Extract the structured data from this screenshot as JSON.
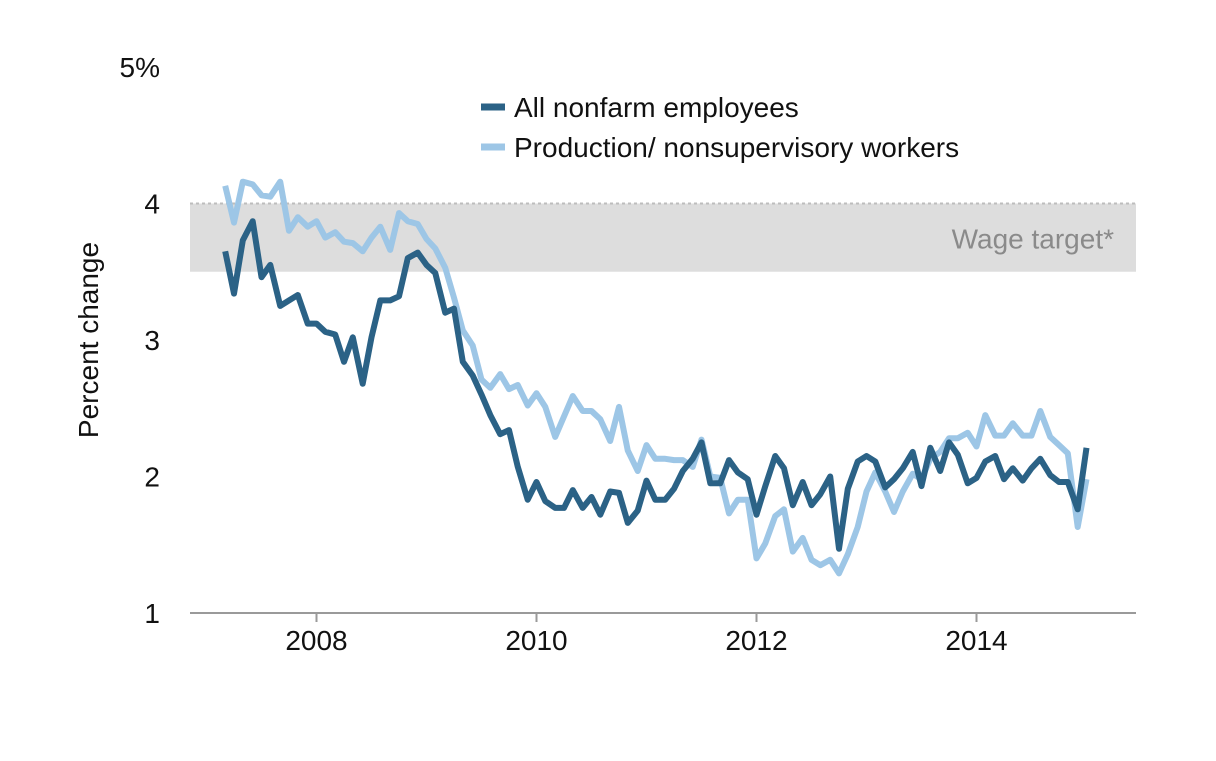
{
  "chart_data": {
    "type": "line",
    "ylabel": "Percent change",
    "y_top_label": "5%",
    "ylim": [
      1,
      5
    ],
    "xlim": [
      2006.85,
      2015.45
    ],
    "y_ticks": [
      {
        "value": 1,
        "label": "1"
      },
      {
        "value": 2,
        "label": "2"
      },
      {
        "value": 3,
        "label": "3"
      },
      {
        "value": 4,
        "label": "4"
      },
      {
        "value": 5,
        "label": "5%"
      }
    ],
    "x_ticks": [
      {
        "value": 2008,
        "label": "2008"
      },
      {
        "value": 2010,
        "label": "2010"
      },
      {
        "value": 2012,
        "label": "2012"
      },
      {
        "value": 2014,
        "label": "2014"
      }
    ],
    "grid": false,
    "legend_position": "top-center",
    "band": {
      "label": "Wage target*",
      "y_range": [
        3.5,
        4.0
      ],
      "color": "#dddddd"
    },
    "series": [
      {
        "name": "All nonfarm employees",
        "color": "#2b6286",
        "x": [
          2007.17,
          2007.25,
          2007.33,
          2007.42,
          2007.5,
          2007.58,
          2007.67,
          2007.75,
          2007.83,
          2007.92,
          2008.0,
          2008.08,
          2008.17,
          2008.25,
          2008.33,
          2008.42,
          2008.5,
          2008.58,
          2008.67,
          2008.75,
          2008.83,
          2008.92,
          2009.0,
          2009.08,
          2009.17,
          2009.25,
          2009.33,
          2009.42,
          2009.5,
          2009.58,
          2009.67,
          2009.75,
          2009.83,
          2009.92,
          2010.0,
          2010.08,
          2010.17,
          2010.25,
          2010.33,
          2010.42,
          2010.5,
          2010.58,
          2010.67,
          2010.75,
          2010.83,
          2010.92,
          2011.0,
          2011.08,
          2011.17,
          2011.25,
          2011.33,
          2011.42,
          2011.5,
          2011.58,
          2011.67,
          2011.75,
          2011.83,
          2011.92,
          2012.0,
          2012.08,
          2012.17,
          2012.25,
          2012.33,
          2012.42,
          2012.5,
          2012.58,
          2012.67,
          2012.75,
          2012.83,
          2012.92,
          2013.0,
          2013.08,
          2013.17,
          2013.25,
          2013.33,
          2013.42,
          2013.5,
          2013.58,
          2013.67,
          2013.75,
          2013.83,
          2013.92,
          2014.0,
          2014.08,
          2014.17,
          2014.25,
          2014.33,
          2014.42,
          2014.5,
          2014.58,
          2014.67,
          2014.75,
          2014.83,
          2014.92,
          2015.0
        ],
        "y": [
          3.65,
          3.34,
          3.73,
          3.87,
          3.46,
          3.55,
          3.25,
          3.29,
          3.33,
          3.12,
          3.12,
          3.06,
          3.04,
          2.84,
          3.02,
          2.68,
          3.02,
          3.29,
          3.29,
          3.32,
          3.6,
          3.64,
          3.55,
          3.49,
          3.2,
          3.23,
          2.84,
          2.74,
          2.6,
          2.45,
          2.31,
          2.34,
          2.07,
          1.83,
          1.96,
          1.82,
          1.77,
          1.77,
          1.9,
          1.77,
          1.85,
          1.72,
          1.89,
          1.88,
          1.66,
          1.75,
          1.97,
          1.83,
          1.83,
          1.91,
          2.04,
          2.13,
          2.25,
          1.95,
          1.95,
          2.12,
          2.03,
          1.98,
          1.72,
          1.93,
          2.15,
          2.06,
          1.79,
          1.96,
          1.79,
          1.87,
          2.0,
          1.47,
          1.91,
          2.11,
          2.15,
          2.11,
          1.92,
          1.98,
          2.06,
          2.18,
          1.93,
          2.21,
          2.04,
          2.25,
          2.16,
          1.95,
          1.99,
          2.11,
          2.15,
          1.98,
          2.06,
          1.97,
          2.06,
          2.13,
          2.01,
          1.96,
          1.96,
          1.76,
          2.21
        ]
      },
      {
        "name": "Production/ nonsupervisory workers",
        "color": "#9dc6e6",
        "x": [
          2007.17,
          2007.25,
          2007.33,
          2007.42,
          2007.5,
          2007.58,
          2007.67,
          2007.75,
          2007.83,
          2007.92,
          2008.0,
          2008.08,
          2008.17,
          2008.25,
          2008.33,
          2008.42,
          2008.5,
          2008.58,
          2008.67,
          2008.75,
          2008.83,
          2008.92,
          2009.0,
          2009.08,
          2009.17,
          2009.25,
          2009.33,
          2009.42,
          2009.5,
          2009.58,
          2009.67,
          2009.75,
          2009.83,
          2009.92,
          2010.0,
          2010.08,
          2010.17,
          2010.25,
          2010.33,
          2010.42,
          2010.5,
          2010.58,
          2010.67,
          2010.75,
          2010.83,
          2010.92,
          2011.0,
          2011.08,
          2011.17,
          2011.25,
          2011.33,
          2011.42,
          2011.5,
          2011.58,
          2011.67,
          2011.75,
          2011.83,
          2011.92,
          2012.0,
          2012.08,
          2012.17,
          2012.25,
          2012.33,
          2012.42,
          2012.5,
          2012.58,
          2012.67,
          2012.75,
          2012.83,
          2012.92,
          2013.0,
          2013.08,
          2013.17,
          2013.25,
          2013.33,
          2013.42,
          2013.5,
          2013.58,
          2013.67,
          2013.75,
          2013.83,
          2013.92,
          2014.0,
          2014.08,
          2014.17,
          2014.25,
          2014.33,
          2014.42,
          2014.5,
          2014.58,
          2014.67,
          2014.75,
          2014.83,
          2014.92,
          2015.0
        ],
        "y": [
          4.13,
          3.86,
          4.16,
          4.14,
          4.06,
          4.05,
          4.16,
          3.8,
          3.9,
          3.83,
          3.87,
          3.75,
          3.79,
          3.72,
          3.71,
          3.65,
          3.75,
          3.83,
          3.66,
          3.93,
          3.87,
          3.85,
          3.74,
          3.67,
          3.53,
          3.31,
          3.07,
          2.96,
          2.71,
          2.65,
          2.75,
          2.64,
          2.67,
          2.52,
          2.61,
          2.51,
          2.29,
          2.44,
          2.59,
          2.48,
          2.48,
          2.42,
          2.26,
          2.51,
          2.19,
          2.04,
          2.23,
          2.13,
          2.13,
          2.12,
          2.12,
          2.07,
          2.27,
          2.0,
          1.99,
          1.73,
          1.83,
          1.83,
          1.4,
          1.51,
          1.71,
          1.76,
          1.45,
          1.55,
          1.39,
          1.35,
          1.39,
          1.29,
          1.43,
          1.63,
          1.89,
          2.03,
          1.89,
          1.74,
          1.89,
          2.02,
          1.98,
          2.13,
          2.18,
          2.28,
          2.28,
          2.32,
          2.22,
          2.45,
          2.3,
          2.3,
          2.39,
          2.3,
          2.3,
          2.48,
          2.29,
          2.23,
          2.17,
          1.63,
          1.98
        ]
      }
    ]
  }
}
